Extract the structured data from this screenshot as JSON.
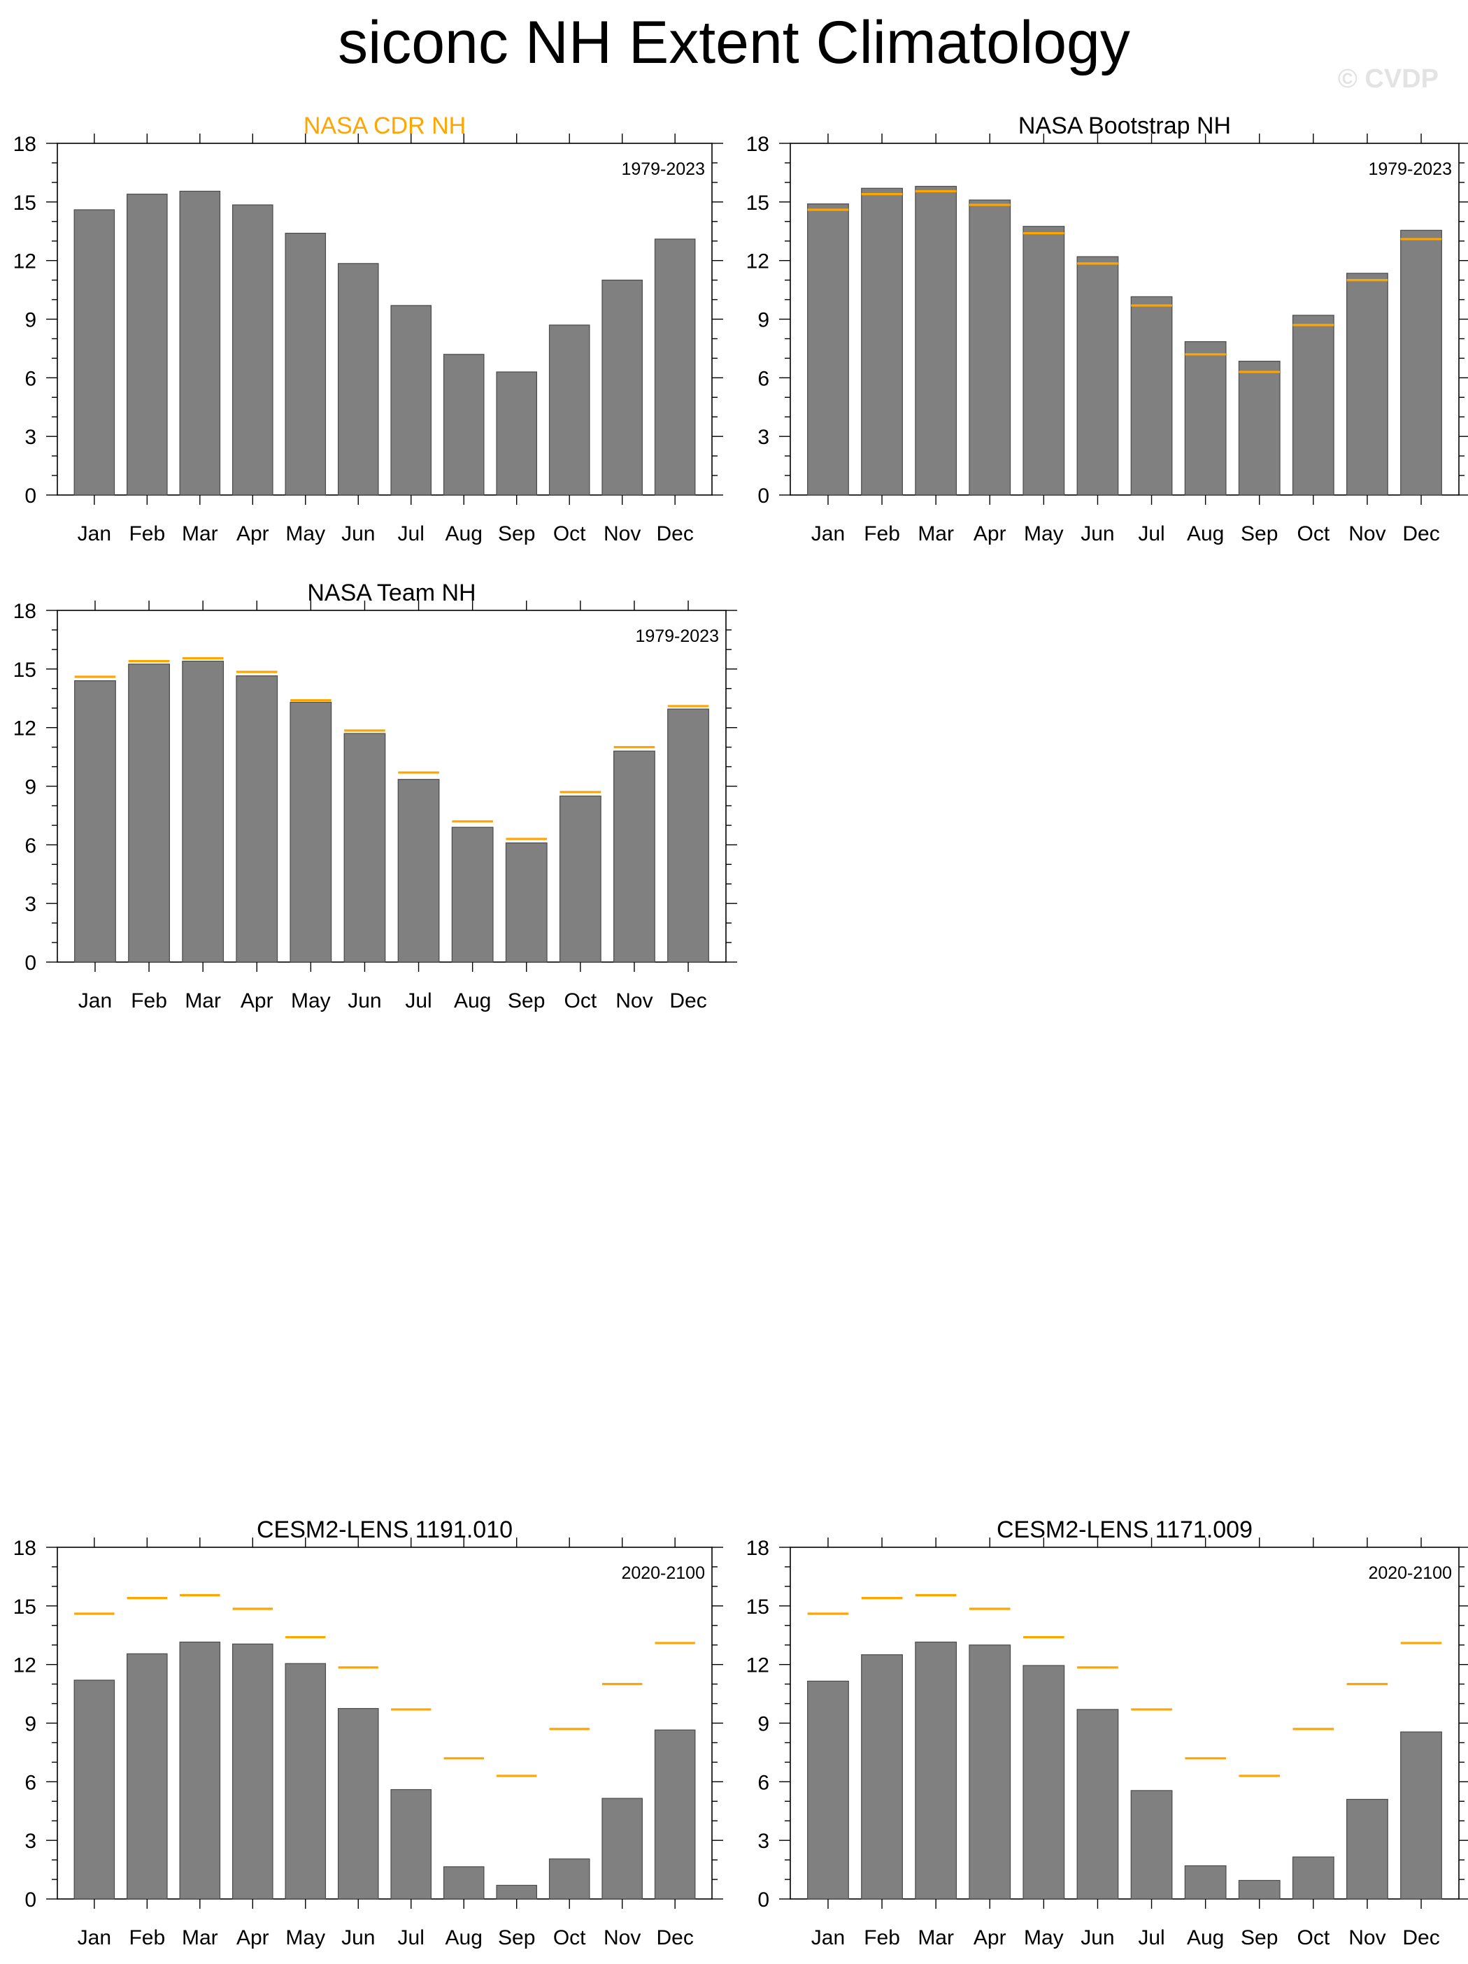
{
  "title": "siconc NH Extent Climatology",
  "watermark": "© CVDP",
  "colors": {
    "bar": "#808080",
    "bar_edge": "#4a4a4a",
    "reference": "#ffa500",
    "title_highlight": "#ffa500"
  },
  "chart_data": [
    {
      "type": "bar",
      "title": "NASA CDR NH",
      "title_color": "#ffa500",
      "period": "1979-2023",
      "categories": [
        "Jan",
        "Feb",
        "Mar",
        "Apr",
        "May",
        "Jun",
        "Jul",
        "Aug",
        "Sep",
        "Oct",
        "Nov",
        "Dec"
      ],
      "values": [
        14.6,
        15.4,
        15.55,
        14.85,
        13.4,
        11.85,
        9.7,
        7.2,
        6.3,
        8.7,
        11.0,
        13.1
      ],
      "reference": null,
      "yticks": [
        0,
        3,
        6,
        9,
        12,
        15,
        18
      ],
      "ylim": [
        0,
        18
      ]
    },
    {
      "type": "bar",
      "title": "NASA Bootstrap NH",
      "title_color": "#000000",
      "period": "1979-2023",
      "categories": [
        "Jan",
        "Feb",
        "Mar",
        "Apr",
        "May",
        "Jun",
        "Jul",
        "Aug",
        "Sep",
        "Oct",
        "Nov",
        "Dec"
      ],
      "values": [
        14.9,
        15.7,
        15.8,
        15.1,
        13.75,
        12.2,
        10.15,
        7.85,
        6.85,
        9.2,
        11.35,
        13.55
      ],
      "reference": [
        14.6,
        15.4,
        15.55,
        14.85,
        13.4,
        11.85,
        9.7,
        7.2,
        6.3,
        8.7,
        11.0,
        13.1
      ],
      "yticks": [
        0,
        3,
        6,
        9,
        12,
        15,
        18
      ],
      "ylim": [
        0,
        18
      ]
    },
    {
      "type": "bar",
      "title": "NASA Team NH",
      "title_color": "#000000",
      "period": "1979-2023",
      "categories": [
        "Jan",
        "Feb",
        "Mar",
        "Apr",
        "May",
        "Jun",
        "Jul",
        "Aug",
        "Sep",
        "Oct",
        "Nov",
        "Dec"
      ],
      "values": [
        14.4,
        15.25,
        15.4,
        14.65,
        13.3,
        11.7,
        9.35,
        6.9,
        6.1,
        8.5,
        10.8,
        12.95
      ],
      "reference": [
        14.6,
        15.4,
        15.55,
        14.85,
        13.4,
        11.85,
        9.7,
        7.2,
        6.3,
        8.7,
        11.0,
        13.1
      ],
      "yticks": [
        0,
        3,
        6,
        9,
        12,
        15,
        18
      ],
      "ylim": [
        0,
        18
      ]
    },
    {
      "type": "bar",
      "title": "CESM2-LENS 1191.010",
      "title_color": "#000000",
      "period": "2020-2100",
      "categories": [
        "Jan",
        "Feb",
        "Mar",
        "Apr",
        "May",
        "Jun",
        "Jul",
        "Aug",
        "Sep",
        "Oct",
        "Nov",
        "Dec"
      ],
      "values": [
        11.2,
        12.55,
        13.15,
        13.05,
        12.05,
        9.75,
        5.6,
        1.65,
        0.7,
        2.05,
        5.15,
        8.65
      ],
      "reference": [
        14.6,
        15.4,
        15.55,
        14.85,
        13.4,
        11.85,
        9.7,
        7.2,
        6.3,
        8.7,
        11.0,
        13.1
      ],
      "yticks": [
        0,
        3,
        6,
        9,
        12,
        15,
        18
      ],
      "ylim": [
        0,
        18
      ]
    },
    {
      "type": "bar",
      "title": "CESM2-LENS 1171.009",
      "title_color": "#000000",
      "period": "2020-2100",
      "categories": [
        "Jan",
        "Feb",
        "Mar",
        "Apr",
        "May",
        "Jun",
        "Jul",
        "Aug",
        "Sep",
        "Oct",
        "Nov",
        "Dec"
      ],
      "values": [
        11.15,
        12.5,
        13.15,
        13.0,
        11.95,
        9.7,
        5.55,
        1.7,
        0.95,
        2.15,
        5.1,
        8.55
      ],
      "reference": [
        14.6,
        15.4,
        15.55,
        14.85,
        13.4,
        11.85,
        9.7,
        7.2,
        6.3,
        8.7,
        11.0,
        13.1
      ],
      "yticks": [
        0,
        3,
        6,
        9,
        12,
        15,
        18
      ],
      "ylim": [
        0,
        18
      ]
    }
  ]
}
